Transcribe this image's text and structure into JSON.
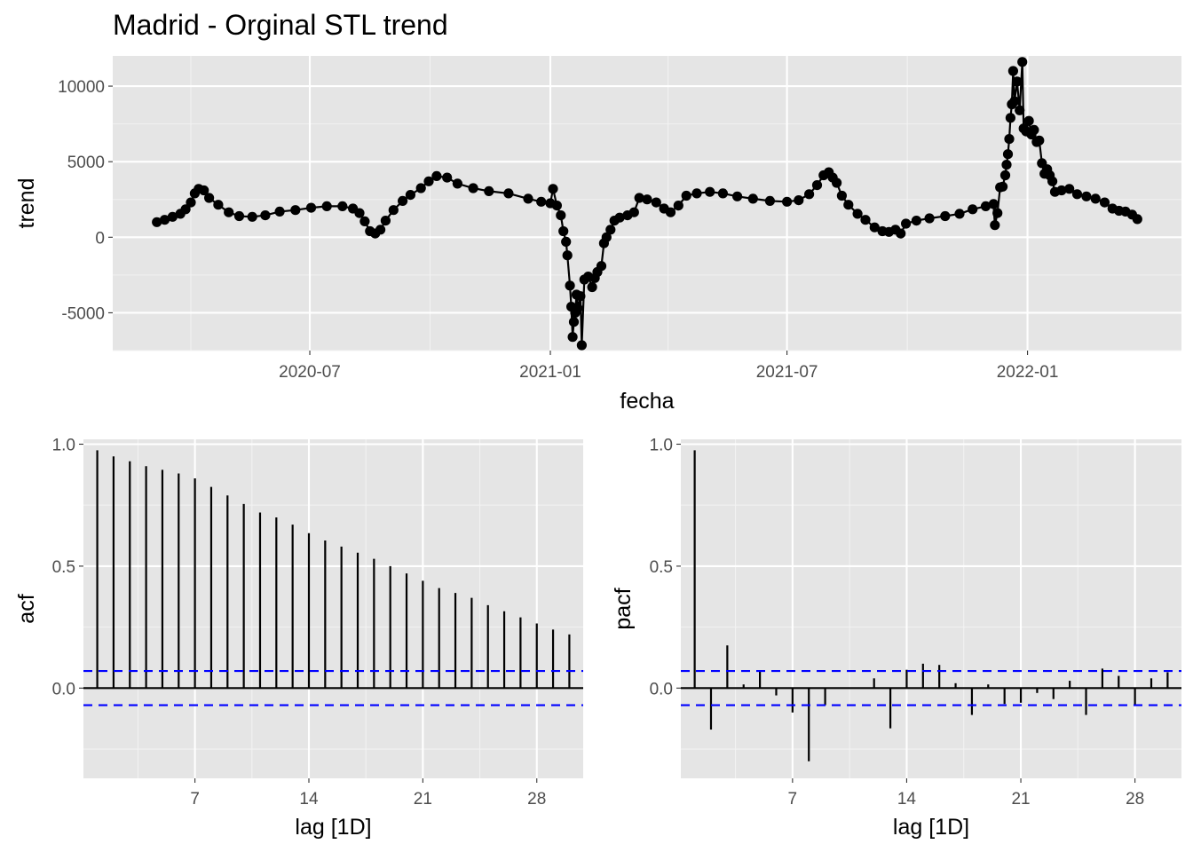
{
  "title": "Madrid - Orginal STL trend",
  "colors": {
    "panel": "#e5e5e5",
    "grid": "#ffffff",
    "line": "#000000",
    "bounds": "#0000ff"
  },
  "chart_data": [
    {
      "name": "trend_panel",
      "type": "line",
      "xlabel": "fecha",
      "ylabel": "trend",
      "x_unit": "date",
      "x_ticks": [
        "2020-07",
        "2021-01",
        "2021-07",
        "2022-01"
      ],
      "y_ticks": [
        -5000,
        0,
        5000,
        10000
      ],
      "y_tick_labels": [
        "-5000",
        "0",
        "5000",
        "10000"
      ],
      "ylim": [
        -7500,
        12000
      ],
      "points": [
        [
          "2020-03-06",
          1000
        ],
        [
          "2020-03-12",
          1150
        ],
        [
          "2020-03-18",
          1350
        ],
        [
          "2020-03-24",
          1550
        ],
        [
          "2020-03-28",
          1850
        ],
        [
          "2020-04-01",
          2300
        ],
        [
          "2020-04-04",
          2900
        ],
        [
          "2020-04-07",
          3200
        ],
        [
          "2020-04-11",
          3100
        ],
        [
          "2020-04-15",
          2600
        ],
        [
          "2020-04-22",
          2150
        ],
        [
          "2020-04-30",
          1650
        ],
        [
          "2020-05-08",
          1400
        ],
        [
          "2020-05-18",
          1350
        ],
        [
          "2020-05-28",
          1450
        ],
        [
          "2020-06-08",
          1700
        ],
        [
          "2020-06-20",
          1800
        ],
        [
          "2020-07-02",
          1950
        ],
        [
          "2020-07-14",
          2050
        ],
        [
          "2020-07-26",
          2050
        ],
        [
          "2020-08-03",
          1900
        ],
        [
          "2020-08-08",
          1600
        ],
        [
          "2020-08-12",
          1050
        ],
        [
          "2020-08-16",
          400
        ],
        [
          "2020-08-20",
          250
        ],
        [
          "2020-08-24",
          500
        ],
        [
          "2020-08-28",
          1100
        ],
        [
          "2020-09-03",
          1800
        ],
        [
          "2020-09-10",
          2400
        ],
        [
          "2020-09-16",
          2800
        ],
        [
          "2020-09-24",
          3250
        ],
        [
          "2020-09-30",
          3700
        ],
        [
          "2020-10-06",
          4050
        ],
        [
          "2020-10-14",
          3950
        ],
        [
          "2020-10-22",
          3550
        ],
        [
          "2020-11-03",
          3250
        ],
        [
          "2020-11-15",
          3050
        ],
        [
          "2020-11-30",
          2900
        ],
        [
          "2020-12-15",
          2550
        ],
        [
          "2020-12-25",
          2350
        ],
        [
          "2021-01-01",
          2250
        ],
        [
          "2021-01-03",
          3200
        ],
        [
          "2021-01-06",
          2100
        ],
        [
          "2021-01-09",
          1450
        ],
        [
          "2021-01-11",
          400
        ],
        [
          "2021-01-13",
          -300
        ],
        [
          "2021-01-14",
          -1200
        ],
        [
          "2021-01-16",
          -3200
        ],
        [
          "2021-01-17",
          -4600
        ],
        [
          "2021-01-18",
          -6600
        ],
        [
          "2021-01-19",
          -5600
        ],
        [
          "2021-01-20",
          -5000
        ],
        [
          "2021-01-21",
          -3800
        ],
        [
          "2021-01-22",
          -4700
        ],
        [
          "2021-01-24",
          -3900
        ],
        [
          "2021-01-25",
          -7150
        ],
        [
          "2021-01-27",
          -2800
        ],
        [
          "2021-01-30",
          -2600
        ],
        [
          "2021-02-02",
          -3300
        ],
        [
          "2021-02-04",
          -2700
        ],
        [
          "2021-02-06",
          -2300
        ],
        [
          "2021-02-09",
          -1900
        ],
        [
          "2021-02-11",
          -400
        ],
        [
          "2021-02-13",
          0
        ],
        [
          "2021-02-16",
          500
        ],
        [
          "2021-02-19",
          1100
        ],
        [
          "2021-02-23",
          1300
        ],
        [
          "2021-03-01",
          1450
        ],
        [
          "2021-03-06",
          1650
        ],
        [
          "2021-03-10",
          2600
        ],
        [
          "2021-03-16",
          2500
        ],
        [
          "2021-03-23",
          2300
        ],
        [
          "2021-03-29",
          1900
        ],
        [
          "2021-04-03",
          1650
        ],
        [
          "2021-04-09",
          2100
        ],
        [
          "2021-04-15",
          2750
        ],
        [
          "2021-04-23",
          2900
        ],
        [
          "2021-05-03",
          3000
        ],
        [
          "2021-05-13",
          2900
        ],
        [
          "2021-05-24",
          2700
        ],
        [
          "2021-06-05",
          2550
        ],
        [
          "2021-06-18",
          2400
        ],
        [
          "2021-07-01",
          2350
        ],
        [
          "2021-07-10",
          2450
        ],
        [
          "2021-07-18",
          2850
        ],
        [
          "2021-07-24",
          3450
        ],
        [
          "2021-07-29",
          4100
        ],
        [
          "2021-08-02",
          4300
        ],
        [
          "2021-08-05",
          3950
        ],
        [
          "2021-08-08",
          3600
        ],
        [
          "2021-08-12",
          2750
        ],
        [
          "2021-08-17",
          2150
        ],
        [
          "2021-08-24",
          1550
        ],
        [
          "2021-08-30",
          1150
        ],
        [
          "2021-09-06",
          650
        ],
        [
          "2021-09-12",
          400
        ],
        [
          "2021-09-17",
          350
        ],
        [
          "2021-09-22",
          500
        ],
        [
          "2021-09-26",
          250
        ],
        [
          "2021-09-30",
          900
        ],
        [
          "2021-10-08",
          1100
        ],
        [
          "2021-10-18",
          1250
        ],
        [
          "2021-10-30",
          1400
        ],
        [
          "2021-11-10",
          1550
        ],
        [
          "2021-11-20",
          1850
        ],
        [
          "2021-11-30",
          2050
        ],
        [
          "2021-12-06",
          2200
        ],
        [
          "2021-12-07",
          800
        ],
        [
          "2021-12-09",
          1600
        ],
        [
          "2021-12-11",
          3300
        ],
        [
          "2021-12-13",
          3350
        ],
        [
          "2021-12-15",
          4100
        ],
        [
          "2021-12-16",
          4800
        ],
        [
          "2021-12-17",
          5500
        ],
        [
          "2021-12-18",
          6500
        ],
        [
          "2021-12-19",
          7900
        ],
        [
          "2021-12-20",
          8800
        ],
        [
          "2021-12-21",
          11000
        ],
        [
          "2021-12-22",
          9000
        ],
        [
          "2021-12-24",
          10300
        ],
        [
          "2021-12-26",
          8400
        ],
        [
          "2021-12-28",
          11600
        ],
        [
          "2021-12-29",
          7200
        ],
        [
          "2021-12-31",
          7000
        ],
        [
          "2022-01-02",
          7700
        ],
        [
          "2022-01-04",
          6800
        ],
        [
          "2022-01-06",
          7100
        ],
        [
          "2022-01-08",
          6300
        ],
        [
          "2022-01-10",
          6400
        ],
        [
          "2022-01-12",
          4900
        ],
        [
          "2022-01-14",
          4200
        ],
        [
          "2022-01-16",
          4500
        ],
        [
          "2022-01-18",
          4100
        ],
        [
          "2022-01-20",
          3700
        ],
        [
          "2022-01-22",
          3000
        ],
        [
          "2022-01-27",
          3100
        ],
        [
          "2022-02-02",
          3200
        ],
        [
          "2022-02-08",
          2850
        ],
        [
          "2022-02-15",
          2700
        ],
        [
          "2022-02-22",
          2550
        ],
        [
          "2022-03-01",
          2300
        ],
        [
          "2022-03-07",
          1900
        ],
        [
          "2022-03-12",
          1750
        ],
        [
          "2022-03-17",
          1700
        ],
        [
          "2022-03-22",
          1500
        ],
        [
          "2022-03-26",
          1200
        ]
      ]
    },
    {
      "name": "acf_panel",
      "type": "bar",
      "xlabel": "lag [1D]",
      "ylabel": "acf",
      "x_ticks": [
        7,
        14,
        21,
        28
      ],
      "y_ticks": [
        0,
        0.5,
        1
      ],
      "y_tick_labels": [
        "0.0",
        "0.5",
        "1.0"
      ],
      "ylim": [
        -0.37,
        1.02
      ],
      "lags": [
        1,
        2,
        3,
        4,
        5,
        6,
        7,
        8,
        9,
        10,
        11,
        12,
        13,
        14,
        15,
        16,
        17,
        18,
        19,
        20,
        21,
        22,
        23,
        24,
        25,
        26,
        27,
        28,
        29,
        30
      ],
      "values": [
        0.975,
        0.95,
        0.93,
        0.91,
        0.895,
        0.88,
        0.86,
        0.825,
        0.79,
        0.755,
        0.72,
        0.7,
        0.67,
        0.635,
        0.605,
        0.58,
        0.555,
        0.53,
        0.5,
        0.47,
        0.44,
        0.41,
        0.39,
        0.37,
        0.34,
        0.315,
        0.29,
        0.265,
        0.24,
        0.22
      ],
      "conf_bound": 0.07
    },
    {
      "name": "pacf_panel",
      "type": "bar",
      "xlabel": "lag [1D]",
      "ylabel": "pacf",
      "x_ticks": [
        7,
        14,
        21,
        28
      ],
      "y_ticks": [
        0,
        0.5,
        1
      ],
      "y_tick_labels": [
        "0.0",
        "0.5",
        "1.0"
      ],
      "ylim": [
        -0.37,
        1.02
      ],
      "lags": [
        1,
        2,
        3,
        4,
        5,
        6,
        7,
        8,
        9,
        10,
        11,
        12,
        13,
        14,
        15,
        16,
        17,
        18,
        19,
        20,
        21,
        22,
        23,
        24,
        25,
        26,
        27,
        28,
        29,
        30
      ],
      "values": [
        0.975,
        -0.17,
        0.175,
        0.015,
        0.07,
        -0.03,
        -0.1,
        -0.3,
        -0.07,
        0.0,
        0.0,
        0.04,
        -0.165,
        0.075,
        0.1,
        0.095,
        0.02,
        -0.11,
        0.015,
        -0.065,
        -0.06,
        -0.02,
        -0.045,
        0.03,
        -0.11,
        0.08,
        0.05,
        -0.07,
        0.04,
        0.065
      ],
      "conf_bound": 0.07
    }
  ]
}
